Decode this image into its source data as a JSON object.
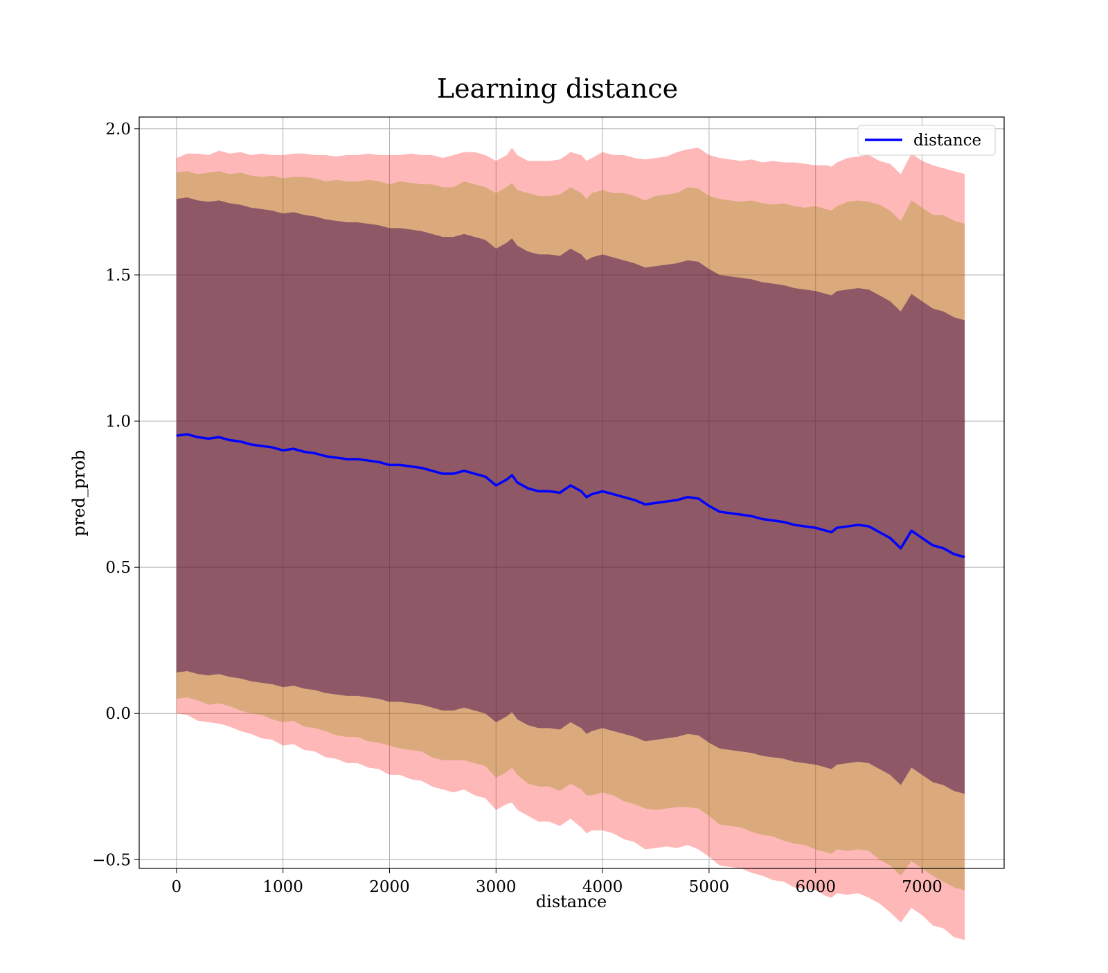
{
  "chart_data": {
    "type": "line",
    "title": "Learning distance",
    "xlabel": "distance",
    "ylabel": "pred_prob",
    "xlim": [
      -350,
      7770
    ],
    "ylim": [
      -0.53,
      2.04
    ],
    "x_ticks": [
      "0",
      "1000",
      "2000",
      "3000",
      "4000",
      "5000",
      "6000",
      "7000"
    ],
    "x_tick_values": [
      0,
      1000,
      2000,
      3000,
      4000,
      5000,
      6000,
      7000
    ],
    "y_ticks": [
      "−0.5",
      "0.0",
      "0.5",
      "1.0",
      "1.5",
      "2.0"
    ],
    "y_tick_values": [
      -0.5,
      0.0,
      0.5,
      1.0,
      1.5,
      2.0
    ],
    "grid": true,
    "legend": {
      "position": "top-right",
      "entries": [
        "distance"
      ]
    },
    "colors": {
      "line": "#0000ff",
      "band_outer": "#ff0000",
      "band_middle": "#8b8b00",
      "band_inner": "#3b0050",
      "grid": "#b0b0b0"
    },
    "series": [
      {
        "name": "distance",
        "x": [
          0,
          100,
          200,
          300,
          400,
          500,
          600,
          700,
          800,
          900,
          1000,
          1100,
          1200,
          1300,
          1400,
          1500,
          1600,
          1700,
          1800,
          1900,
          2000,
          2100,
          2200,
          2300,
          2400,
          2500,
          2600,
          2700,
          2800,
          2900,
          3000,
          3100,
          3150,
          3200,
          3300,
          3400,
          3500,
          3600,
          3700,
          3800,
          3850,
          3900,
          4000,
          4100,
          4200,
          4300,
          4400,
          4500,
          4600,
          4700,
          4800,
          4900,
          5000,
          5100,
          5200,
          5300,
          5400,
          5500,
          5600,
          5700,
          5800,
          5900,
          6000,
          6100,
          6150,
          6200,
          6300,
          6400,
          6500,
          6600,
          6700,
          6800,
          6900,
          7000,
          7100,
          7200,
          7300,
          7400
        ],
        "values": [
          0.95,
          0.955,
          0.945,
          0.94,
          0.945,
          0.935,
          0.93,
          0.92,
          0.915,
          0.91,
          0.9,
          0.905,
          0.895,
          0.89,
          0.88,
          0.875,
          0.87,
          0.87,
          0.865,
          0.86,
          0.85,
          0.85,
          0.845,
          0.84,
          0.83,
          0.82,
          0.82,
          0.83,
          0.82,
          0.81,
          0.78,
          0.8,
          0.815,
          0.79,
          0.77,
          0.76,
          0.76,
          0.755,
          0.78,
          0.76,
          0.74,
          0.75,
          0.76,
          0.75,
          0.74,
          0.73,
          0.715,
          0.72,
          0.725,
          0.73,
          0.74,
          0.735,
          0.71,
          0.69,
          0.685,
          0.68,
          0.675,
          0.665,
          0.66,
          0.655,
          0.645,
          0.64,
          0.635,
          0.625,
          0.62,
          0.635,
          0.64,
          0.645,
          0.64,
          0.62,
          0.6,
          0.565,
          0.625,
          0.6,
          0.575,
          0.565,
          0.545,
          0.535
        ]
      }
    ],
    "bands": [
      {
        "label": "outer",
        "lower_offset": [
          0.95,
          0.96,
          0.97,
          0.97,
          0.98,
          0.98,
          0.99,
          0.99,
          1.0,
          1.0,
          1.01,
          1.01,
          1.02,
          1.02,
          1.03,
          1.03,
          1.04,
          1.04,
          1.05,
          1.05,
          1.06,
          1.06,
          1.07,
          1.07,
          1.08,
          1.08,
          1.09,
          1.09,
          1.1,
          1.1,
          1.11,
          1.11,
          1.12,
          1.12,
          1.12,
          1.13,
          1.13,
          1.14,
          1.14,
          1.15,
          1.15,
          1.15,
          1.16,
          1.16,
          1.17,
          1.17,
          1.18,
          1.18,
          1.18,
          1.19,
          1.19,
          1.2,
          1.2,
          1.21,
          1.21,
          1.21,
          1.22,
          1.22,
          1.23,
          1.23,
          1.24,
          1.24,
          1.24,
          1.25,
          1.25,
          1.25,
          1.26,
          1.26,
          1.27,
          1.27,
          1.28,
          1.28,
          1.29,
          1.29,
          1.3,
          1.3,
          1.31,
          1.31
        ],
        "upper_offset": [
          0.95,
          0.96,
          0.97,
          0.97,
          0.98,
          0.98,
          0.99,
          0.99,
          1.0,
          1.0,
          1.01,
          1.01,
          1.02,
          1.02,
          1.03,
          1.03,
          1.04,
          1.04,
          1.05,
          1.05,
          1.06,
          1.06,
          1.07,
          1.07,
          1.08,
          1.08,
          1.09,
          1.09,
          1.1,
          1.1,
          1.11,
          1.11,
          1.12,
          1.12,
          1.12,
          1.13,
          1.13,
          1.14,
          1.14,
          1.15,
          1.15,
          1.15,
          1.16,
          1.16,
          1.17,
          1.17,
          1.18,
          1.18,
          1.18,
          1.19,
          1.19,
          1.2,
          1.2,
          1.21,
          1.21,
          1.21,
          1.22,
          1.22,
          1.23,
          1.23,
          1.24,
          1.24,
          1.24,
          1.25,
          1.25,
          1.25,
          1.26,
          1.26,
          1.27,
          1.27,
          1.28,
          1.28,
          1.29,
          1.29,
          1.3,
          1.3,
          1.31,
          1.31
        ]
      },
      {
        "label": "middle",
        "lower_offset": [
          0.9,
          0.9,
          0.9,
          0.91,
          0.91,
          0.91,
          0.92,
          0.92,
          0.92,
          0.93,
          0.93,
          0.93,
          0.94,
          0.94,
          0.94,
          0.95,
          0.95,
          0.95,
          0.96,
          0.96,
          0.96,
          0.97,
          0.97,
          0.97,
          0.98,
          0.98,
          0.98,
          0.99,
          0.99,
          0.99,
          1.0,
          1.0,
          1.0,
          1.0,
          1.01,
          1.01,
          1.01,
          1.02,
          1.02,
          1.02,
          1.02,
          1.03,
          1.03,
          1.03,
          1.04,
          1.04,
          1.04,
          1.05,
          1.05,
          1.05,
          1.06,
          1.06,
          1.06,
          1.07,
          1.07,
          1.07,
          1.08,
          1.08,
          1.08,
          1.09,
          1.09,
          1.09,
          1.1,
          1.1,
          1.1,
          1.1,
          1.11,
          1.11,
          1.11,
          1.12,
          1.12,
          1.12,
          1.13,
          1.13,
          1.13,
          1.14,
          1.14,
          1.14
        ],
        "upper_offset": [
          0.9,
          0.9,
          0.9,
          0.91,
          0.91,
          0.91,
          0.92,
          0.92,
          0.92,
          0.93,
          0.93,
          0.93,
          0.94,
          0.94,
          0.94,
          0.95,
          0.95,
          0.95,
          0.96,
          0.96,
          0.96,
          0.97,
          0.97,
          0.97,
          0.98,
          0.98,
          0.98,
          0.99,
          0.99,
          0.99,
          1.0,
          1.0,
          1.0,
          1.0,
          1.01,
          1.01,
          1.01,
          1.02,
          1.02,
          1.02,
          1.02,
          1.03,
          1.03,
          1.03,
          1.04,
          1.04,
          1.04,
          1.05,
          1.05,
          1.05,
          1.06,
          1.06,
          1.06,
          1.07,
          1.07,
          1.07,
          1.08,
          1.08,
          1.08,
          1.09,
          1.09,
          1.09,
          1.1,
          1.1,
          1.1,
          1.1,
          1.11,
          1.11,
          1.11,
          1.12,
          1.12,
          1.12,
          1.13,
          1.13,
          1.13,
          1.14,
          1.14,
          1.14
        ]
      },
      {
        "label": "inner",
        "lower_offset": [
          0.81,
          0.81,
          0.81,
          0.81,
          0.81,
          0.81,
          0.81,
          0.81,
          0.81,
          0.81,
          0.81,
          0.81,
          0.81,
          0.81,
          0.81,
          0.81,
          0.81,
          0.81,
          0.81,
          0.81,
          0.81,
          0.81,
          0.81,
          0.81,
          0.81,
          0.81,
          0.81,
          0.81,
          0.81,
          0.81,
          0.81,
          0.81,
          0.81,
          0.81,
          0.81,
          0.81,
          0.81,
          0.81,
          0.81,
          0.81,
          0.81,
          0.81,
          0.81,
          0.81,
          0.81,
          0.81,
          0.81,
          0.81,
          0.81,
          0.81,
          0.81,
          0.81,
          0.81,
          0.81,
          0.81,
          0.81,
          0.81,
          0.81,
          0.81,
          0.81,
          0.81,
          0.81,
          0.81,
          0.81,
          0.81,
          0.81,
          0.81,
          0.81,
          0.81,
          0.81,
          0.81,
          0.81,
          0.81,
          0.81,
          0.81,
          0.81,
          0.81,
          0.81
        ],
        "upper_offset": [
          0.81,
          0.81,
          0.81,
          0.81,
          0.81,
          0.81,
          0.81,
          0.81,
          0.81,
          0.81,
          0.81,
          0.81,
          0.81,
          0.81,
          0.81,
          0.81,
          0.81,
          0.81,
          0.81,
          0.81,
          0.81,
          0.81,
          0.81,
          0.81,
          0.81,
          0.81,
          0.81,
          0.81,
          0.81,
          0.81,
          0.81,
          0.81,
          0.81,
          0.81,
          0.81,
          0.81,
          0.81,
          0.81,
          0.81,
          0.81,
          0.81,
          0.81,
          0.81,
          0.81,
          0.81,
          0.81,
          0.81,
          0.81,
          0.81,
          0.81,
          0.81,
          0.81,
          0.81,
          0.81,
          0.81,
          0.81,
          0.81,
          0.81,
          0.81,
          0.81,
          0.81,
          0.81,
          0.81,
          0.81,
          0.81,
          0.81,
          0.81,
          0.81,
          0.81,
          0.81,
          0.81,
          0.81,
          0.81,
          0.81,
          0.81,
          0.81,
          0.81,
          0.81
        ]
      }
    ]
  }
}
